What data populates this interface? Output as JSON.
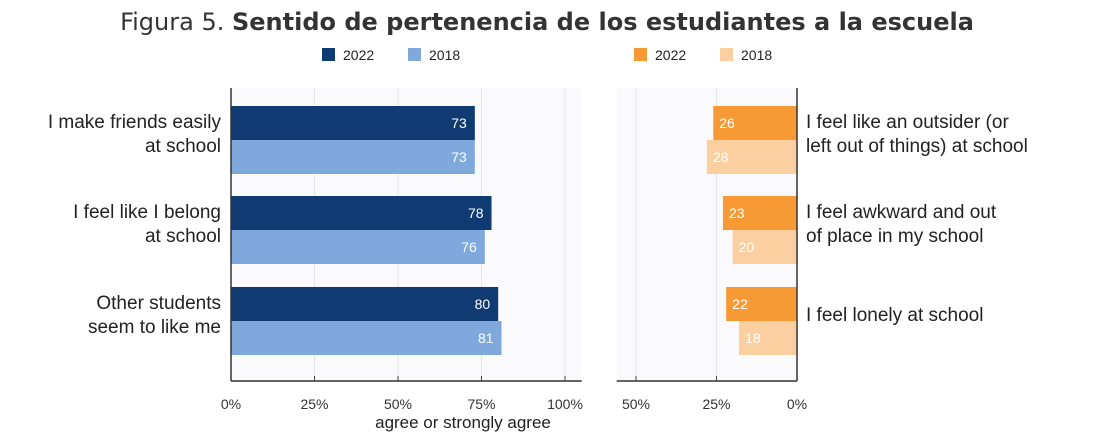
{
  "title": {
    "prefix": "Figura 5.",
    "main": "Sentido de pertenencia de los estudiantes a la escuela"
  },
  "chart_data": [
    {
      "type": "bar",
      "orientation": "horizontal",
      "categories": [
        "I make friends easily at school",
        "I feel like I belong at school",
        "Other students seem to like me"
      ],
      "category_lines": [
        [
          "I make friends easily",
          "at school"
        ],
        [
          "I feel like I belong",
          "at school"
        ],
        [
          "Other students",
          "seem to like me"
        ]
      ],
      "series": [
        {
          "name": "2022",
          "color": "#0f3a72",
          "values": [
            73,
            78,
            80
          ]
        },
        {
          "name": "2018",
          "color": "#7fa9dc",
          "values": [
            73,
            76,
            81
          ]
        }
      ],
      "xlim": [
        0,
        105
      ],
      "xticks": [
        "0%",
        "25%",
        "50%",
        "75%",
        "100%"
      ],
      "xtick_values": [
        0,
        25,
        50,
        75,
        100
      ],
      "xlabel": "agree or strongly agree",
      "grid": true,
      "legend": "top"
    },
    {
      "type": "bar",
      "orientation": "horizontal-reversed",
      "categories": [
        "I feel like an outsider (or left out of things) at school",
        "I feel awkward and out of place in my school",
        "I feel lonely at school"
      ],
      "category_lines": [
        [
          "I feel like an outsider (or",
          "left out of things) at school"
        ],
        [
          "I feel awkward and out",
          "of place in my school"
        ],
        [
          "I feel lonely at school"
        ]
      ],
      "series": [
        {
          "name": "2022",
          "color": "#f79a36",
          "values": [
            26,
            23,
            22
          ]
        },
        {
          "name": "2018",
          "color": "#fbcf9f",
          "values": [
            28,
            20,
            18
          ]
        }
      ],
      "xlim": [
        0,
        56
      ],
      "xticks": [
        "50%",
        "25%",
        "0%"
      ],
      "xtick_values": [
        50,
        25,
        0
      ],
      "grid": true,
      "legend": "top"
    }
  ]
}
